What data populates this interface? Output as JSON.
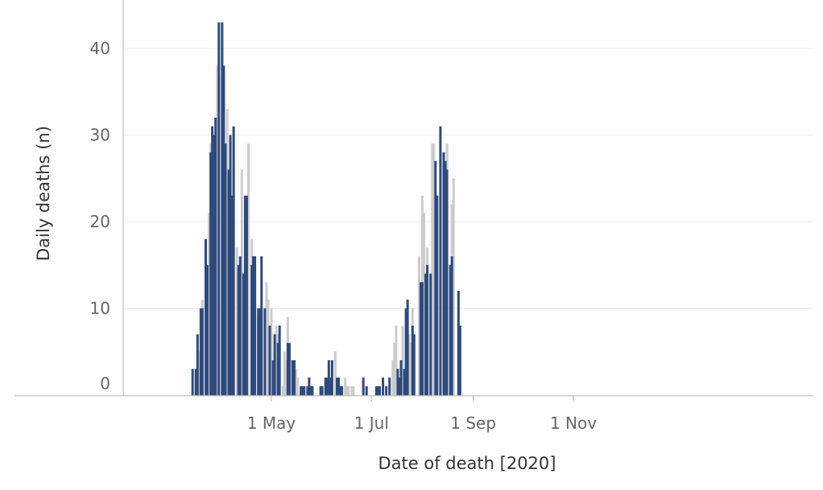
{
  "chart_data": {
    "type": "bar",
    "xlabel": "Date of death [2020]",
    "ylabel": "Daily deaths (n)",
    "ylim": [
      0,
      45
    ],
    "yticks": [
      0,
      10,
      20,
      30,
      40
    ],
    "xticks": [
      {
        "date": "2020-05-01",
        "label": "1 May"
      },
      {
        "date": "2020-07-01",
        "label": "1 Jul"
      },
      {
        "date": "2020-09-01",
        "label": "1 Sep"
      },
      {
        "date": "2020-11-01",
        "label": "1 Nov"
      }
    ],
    "grid": true,
    "x_start": "2020-03-14",
    "series": [
      {
        "color": "#2e4a7d",
        "values": [
          3,
          0,
          3,
          7,
          0,
          10,
          10,
          0,
          18,
          15,
          0,
          28,
          31,
          30,
          32,
          0,
          43,
          0,
          43,
          38,
          29,
          0,
          26,
          30,
          23,
          31,
          0,
          0,
          15,
          16,
          0,
          14,
          23,
          23,
          0,
          0,
          15,
          16,
          16,
          0,
          10,
          10,
          16,
          0,
          10,
          0,
          0,
          8,
          0,
          4,
          7,
          0,
          6,
          8,
          0,
          0,
          0,
          0,
          6,
          6,
          0,
          4,
          4,
          0,
          0,
          0,
          1,
          1,
          1,
          0,
          1,
          2,
          1,
          1,
          0,
          0,
          0,
          0,
          1,
          1,
          0,
          2,
          2,
          4,
          2,
          4,
          0,
          0,
          2,
          2,
          1,
          1,
          0,
          0,
          0,
          0,
          0,
          0,
          0,
          0,
          0,
          0,
          0,
          0,
          2,
          0,
          1,
          0,
          0,
          0,
          0,
          0,
          1,
          1,
          1,
          0,
          2,
          0,
          1,
          0,
          2,
          0,
          0,
          0,
          0,
          3,
          2,
          4,
          0,
          3,
          10,
          11,
          0,
          0,
          8,
          7,
          0,
          0,
          0,
          13,
          13,
          0,
          14,
          15,
          0,
          14,
          0,
          0,
          27,
          23,
          0,
          31,
          0,
          28,
          27,
          26,
          0,
          15,
          16,
          0,
          0,
          0,
          12,
          8,
          0
        ]
      },
      {
        "color": "#cccccc",
        "values": [
          0,
          0,
          0,
          0,
          5,
          9,
          11,
          0,
          17,
          0,
          21,
          29,
          0,
          30,
          0,
          38,
          37,
          0,
          40,
          0,
          0,
          33,
          0,
          0,
          0,
          27,
          0,
          17,
          0,
          0,
          26,
          0,
          0,
          0,
          29,
          0,
          18,
          0,
          14,
          0,
          9,
          0,
          0,
          0,
          0,
          13,
          11,
          0,
          10,
          0,
          0,
          8,
          7,
          0,
          0,
          1,
          5,
          4,
          9,
          0,
          4,
          4,
          0,
          3,
          2,
          0,
          0,
          0,
          0,
          0,
          0,
          0,
          0,
          0,
          0,
          0,
          0,
          0,
          0,
          0,
          0,
          0,
          0,
          0,
          0,
          0,
          0,
          5,
          0,
          0,
          0,
          0,
          0,
          2,
          1,
          1,
          0,
          1,
          1,
          0,
          0,
          0,
          0,
          0,
          0,
          0,
          0,
          0,
          0,
          0,
          0,
          0,
          0,
          0,
          0,
          0,
          0,
          0,
          0,
          0,
          0,
          0,
          4,
          6,
          8,
          0,
          0,
          0,
          8,
          0,
          0,
          0,
          7,
          6,
          10,
          0,
          0,
          0,
          16,
          0,
          23,
          21,
          0,
          17,
          0,
          0,
          29,
          29,
          0,
          0,
          0,
          28,
          0,
          0,
          0,
          29,
          0,
          0,
          22,
          25,
          0,
          0,
          0,
          1
        ]
      }
    ]
  }
}
